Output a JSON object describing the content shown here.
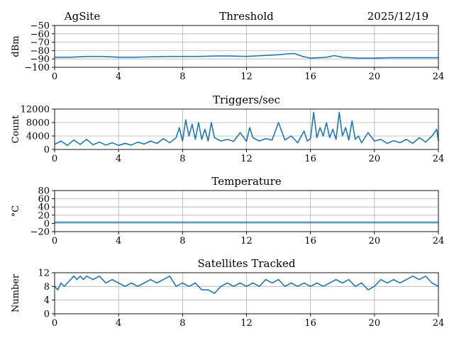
{
  "header": {
    "site": "AgSite",
    "date": "2025/12/19"
  },
  "colors": {
    "series": "#1f77b4",
    "grid": "#b0b0b0",
    "axis": "#000000"
  },
  "chart_data": [
    {
      "type": "line",
      "title": "Threshold",
      "xlabel": "",
      "ylabel": "dBm",
      "xlim": [
        0,
        24
      ],
      "ylim": [
        -100,
        -50
      ],
      "xticks": [
        0,
        4,
        8,
        12,
        16,
        20,
        24
      ],
      "yticks": [
        -100,
        -90,
        -80,
        -70,
        -60,
        -50
      ],
      "ytick_labels": [
        "−100",
        "−90",
        "−80",
        "−70",
        "−60",
        "−50"
      ],
      "grid": true,
      "series": [
        {
          "x": [
            0,
            1,
            2,
            3,
            4,
            5,
            6,
            7,
            8,
            9,
            10,
            11,
            12,
            13,
            14,
            14.5,
            15,
            15.5,
            16,
            17,
            17.5,
            18,
            19,
            20,
            21,
            22,
            23,
            24
          ],
          "values": [
            -88,
            -88,
            -87,
            -87,
            -88,
            -88,
            -87.5,
            -87,
            -87,
            -87,
            -86.5,
            -86.5,
            -87,
            -86,
            -85,
            -84,
            -83.5,
            -87,
            -89,
            -88,
            -86,
            -88,
            -89,
            -89,
            -88.5,
            -88.5,
            -88.5,
            -88.5
          ]
        }
      ]
    },
    {
      "type": "line",
      "title": "Triggers/sec",
      "xlabel": "",
      "ylabel": "Count",
      "xlim": [
        0,
        24
      ],
      "ylim": [
        0,
        12000
      ],
      "xticks": [
        0,
        4,
        8,
        12,
        16,
        20,
        24
      ],
      "yticks": [
        0,
        4000,
        8000,
        12000
      ],
      "ytick_labels": [
        "0",
        "4000",
        "8000",
        "12000"
      ],
      "grid": true,
      "series": [
        {
          "x": [
            0,
            0.4,
            0.8,
            1.2,
            1.6,
            2,
            2.4,
            2.8,
            3.2,
            3.6,
            4,
            4.4,
            4.8,
            5.2,
            5.6,
            6,
            6.4,
            6.8,
            7.2,
            7.6,
            7.8,
            8,
            8.2,
            8.4,
            8.6,
            8.8,
            9,
            9.2,
            9.4,
            9.6,
            9.8,
            10,
            10.4,
            10.8,
            11.2,
            11.6,
            12,
            12.2,
            12.4,
            12.8,
            13.2,
            13.6,
            14,
            14.4,
            14.8,
            15.2,
            15.6,
            15.8,
            16,
            16.2,
            16.4,
            16.6,
            16.8,
            17,
            17.2,
            17.4,
            17.6,
            17.8,
            18,
            18.2,
            18.4,
            18.6,
            18.8,
            19,
            19.2,
            19.6,
            20,
            20.4,
            20.8,
            21.2,
            21.6,
            22,
            22.4,
            22.8,
            23.2,
            23.6,
            23.9,
            24
          ],
          "values": [
            1500,
            2500,
            1200,
            2800,
            1500,
            3000,
            1400,
            2200,
            1300,
            2000,
            1200,
            1800,
            1300,
            2200,
            1600,
            2500,
            1800,
            3200,
            2000,
            3500,
            6500,
            2500,
            8800,
            4000,
            7500,
            3000,
            8000,
            3000,
            6000,
            2500,
            8000,
            3500,
            2500,
            3000,
            2400,
            5000,
            2400,
            6500,
            3500,
            2500,
            3200,
            2800,
            8000,
            2800,
            4000,
            2000,
            5500,
            2500,
            3200,
            11000,
            3500,
            6500,
            4000,
            8000,
            3500,
            6000,
            3000,
            11000,
            4000,
            6500,
            2800,
            8500,
            3000,
            4000,
            2000,
            5000,
            2500,
            3000,
            1800,
            2600,
            2000,
            3000,
            1800,
            3500,
            2200,
            4000,
            6000,
            2500
          ]
        }
      ]
    },
    {
      "type": "line",
      "title": "Temperature",
      "xlabel": "",
      "ylabel": "°C",
      "xlim": [
        0,
        24
      ],
      "ylim": [
        -20,
        80
      ],
      "xticks": [
        0,
        4,
        8,
        12,
        16,
        20,
        24
      ],
      "yticks": [
        -20,
        0,
        20,
        40,
        60,
        80
      ],
      "ytick_labels": [
        "−20",
        "0",
        "20",
        "40",
        "60",
        "80"
      ],
      "grid": true,
      "series": [
        {
          "x": [
            0,
            24
          ],
          "values": [
            3,
            3
          ]
        }
      ]
    },
    {
      "type": "line",
      "title": "Satellites Tracked",
      "xlabel": "",
      "ylabel": "Number",
      "xlim": [
        0,
        24
      ],
      "ylim": [
        0,
        12
      ],
      "xticks": [
        0,
        4,
        8,
        12,
        16,
        20,
        24
      ],
      "yticks": [
        0,
        4,
        8,
        12
      ],
      "ytick_labels": [
        "0",
        "4",
        "8",
        "12"
      ],
      "grid": true,
      "series": [
        {
          "x": [
            0,
            0.2,
            0.4,
            0.6,
            0.8,
            1,
            1.2,
            1.4,
            1.6,
            1.8,
            2,
            2.4,
            2.8,
            3.2,
            3.6,
            4,
            4.4,
            4.8,
            5.2,
            5.6,
            6,
            6.4,
            6.8,
            7.2,
            7.6,
            8,
            8.4,
            8.8,
            9.2,
            9.6,
            10,
            10.4,
            10.8,
            11.2,
            11.6,
            12,
            12.4,
            12.8,
            13.2,
            13.6,
            14,
            14.4,
            14.8,
            15.2,
            15.6,
            16,
            16.4,
            16.8,
            17.2,
            17.6,
            18,
            18.4,
            18.8,
            19.2,
            19.6,
            20,
            20.4,
            20.8,
            21.2,
            21.6,
            22,
            22.4,
            22.8,
            23.2,
            23.6,
            24
          ],
          "values": [
            8,
            7,
            9,
            8,
            9,
            10,
            11,
            10,
            11,
            10,
            11,
            10,
            11,
            9,
            10,
            9,
            8,
            9,
            8,
            9,
            10,
            9,
            10,
            11,
            8,
            9,
            8,
            9,
            7,
            7,
            6,
            8,
            9,
            8,
            9,
            8,
            9,
            8,
            10,
            9,
            10,
            8,
            9,
            8,
            9,
            8,
            9,
            8,
            9,
            10,
            9,
            10,
            8,
            9,
            7,
            8,
            10,
            9,
            10,
            9,
            10,
            11,
            10,
            11,
            9,
            8
          ]
        }
      ]
    }
  ]
}
